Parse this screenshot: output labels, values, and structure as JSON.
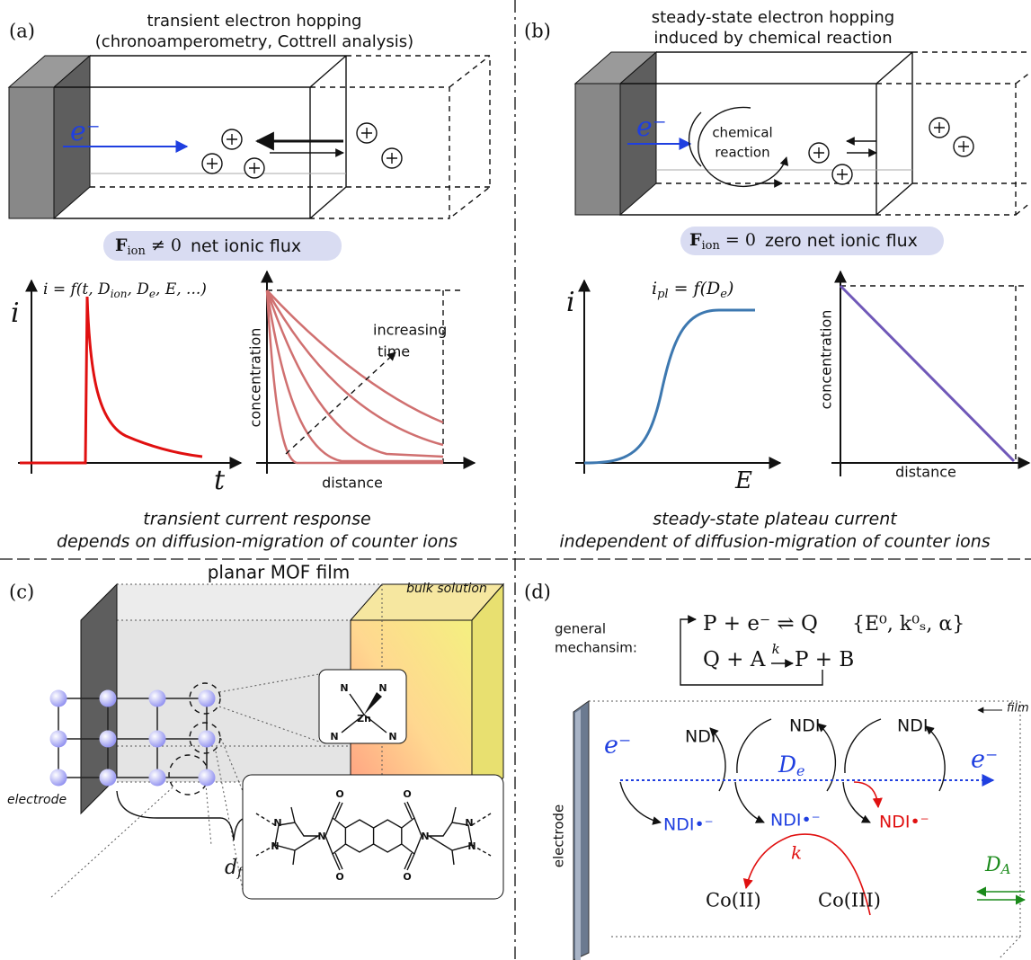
{
  "panel_a": {
    "label": "(a)",
    "title": [
      "transient electron hopping",
      "(chronoamperometry, Cottrell analysis)"
    ],
    "electron": "e⁻",
    "flux": {
      "symbol": "F",
      "subscript": "ion",
      "relation": " ≠ 0",
      "text": "net ionic flux"
    },
    "current_plot": {
      "y_label": "i",
      "x_label": "t",
      "equation": [
        "i = f(t, D",
        "ion",
        ", D",
        "e",
        ", E, ...)"
      ]
    },
    "concentration_plot": {
      "y_label": "concentration",
      "x_label": "distance",
      "annotation": [
        "increasing",
        "time"
      ]
    },
    "caption": [
      "transient current response",
      "depends on diffusion-migration of counter ions"
    ]
  },
  "panel_b": {
    "label": "(b)",
    "title": [
      "steady-state electron hopping",
      "induced by chemical reaction"
    ],
    "electron": "e⁻",
    "reaction_label": [
      "chemical",
      "reaction"
    ],
    "flux": {
      "symbol": "F",
      "subscript": "ion",
      "relation": " = 0",
      "text": "zero net ionic flux"
    },
    "current_plot": {
      "y_label": "i",
      "x_label": "E",
      "equation": [
        "i",
        "pl",
        " = f(D",
        "e",
        ")"
      ]
    },
    "concentration_plot": {
      "y_label": "concentration",
      "x_label": "distance"
    },
    "caption": [
      "steady-state plateau current",
      "independent of diffusion-migration of counter ions"
    ]
  },
  "panel_c": {
    "label": "(c)",
    "film_label": "planar MOF film",
    "solution_label": "bulk solution",
    "electrode_label": "electrode",
    "thickness": {
      "symbol": "d",
      "subscript": "f"
    },
    "node_atoms": [
      "N",
      "N",
      "Zn",
      "N",
      "N"
    ],
    "linker_atoms": [
      "O",
      "O",
      "O",
      "O",
      "N",
      "N",
      "N",
      "N",
      "N",
      "N"
    ]
  },
  "panel_d": {
    "label": "(d)",
    "mechanism_label": [
      "general",
      "mechansim:"
    ],
    "reaction_1": "P + e⁻ ⇌ Q",
    "parameters": "{E⁰, k⁰ₛ, α}",
    "reaction_2": {
      "left": "Q + A ",
      "rate": "k",
      "right": " P + B"
    },
    "film_label": "film",
    "electrode_label": "electrode",
    "electron_in": "e⁻",
    "electron_out": "e⁻",
    "oxidized": [
      "NDI",
      "NDI",
      "NDI"
    ],
    "reduced": [
      "NDI•⁻",
      "NDI•⁻",
      "NDI•⁻"
    ],
    "hopping_coefficient": {
      "symbol": "D",
      "subscript": "e"
    },
    "rate_constant": "k",
    "products": [
      "Co(II)",
      "Co(III)"
    ],
    "diffusion": {
      "symbol": "D",
      "subscript": "A"
    }
  }
}
